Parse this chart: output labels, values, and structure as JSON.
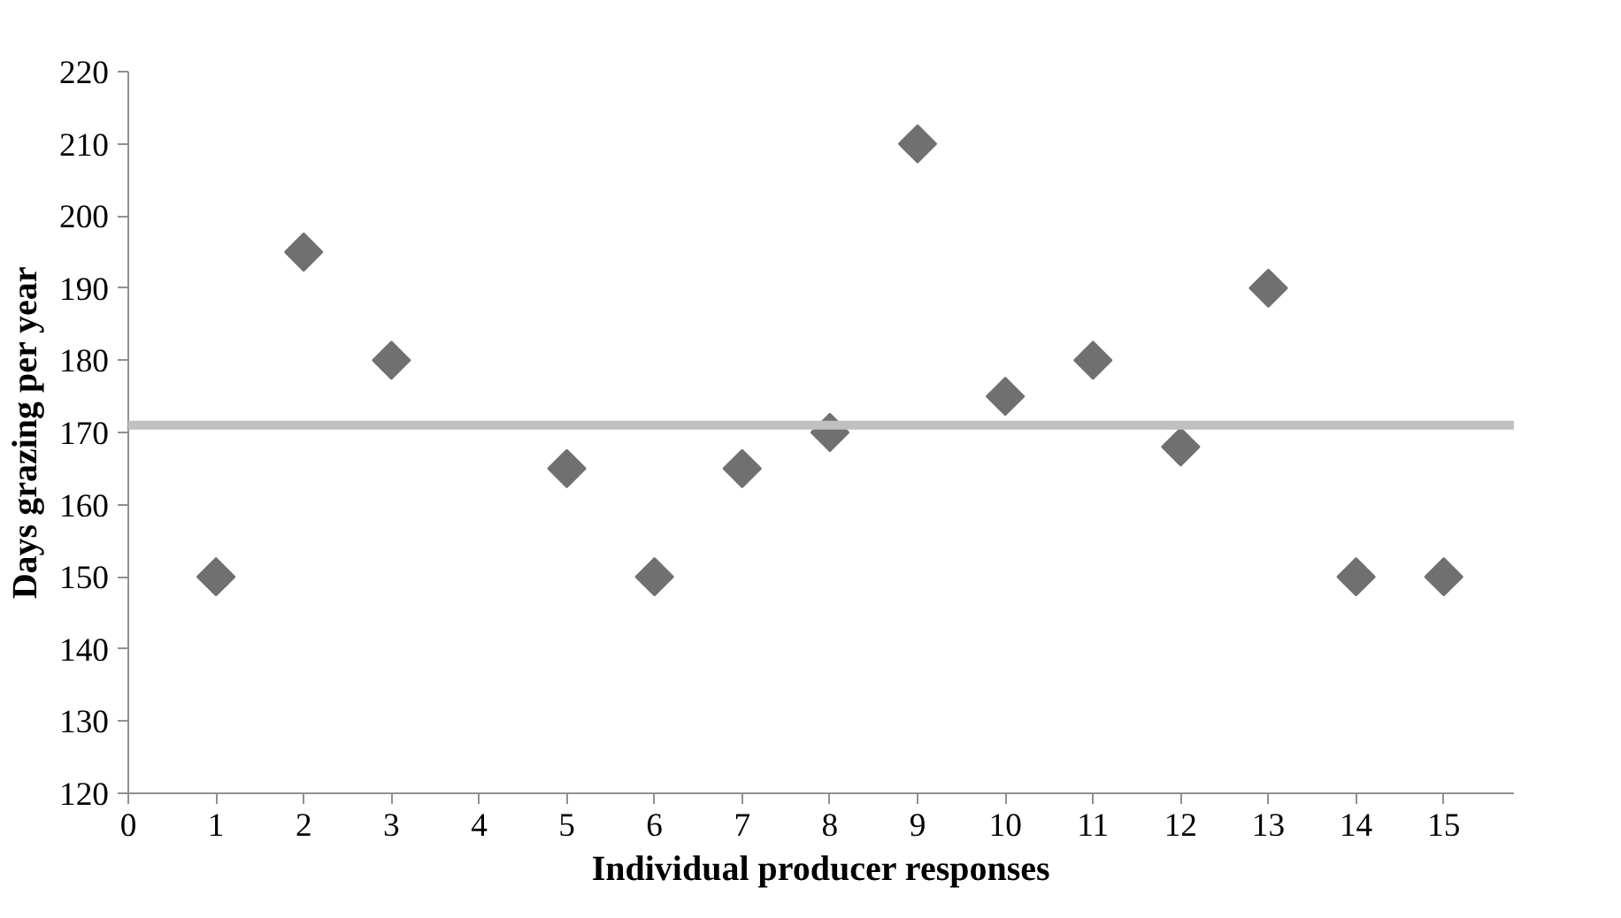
{
  "chart_data": {
    "type": "scatter",
    "xlabel": "Individual producer responses",
    "ylabel": "Days grazing per year",
    "x": [
      1,
      2,
      3,
      5,
      6,
      7,
      8,
      9,
      10,
      11,
      12,
      13,
      14,
      15
    ],
    "values": [
      150,
      195,
      180,
      165,
      150,
      165,
      170,
      210,
      175,
      180,
      168,
      190,
      150,
      150
    ],
    "color": "#707070",
    "marker": "diamond",
    "xlim": [
      0,
      15.8
    ],
    "xticks": [
      0,
      1,
      2,
      3,
      4,
      5,
      6,
      7,
      8,
      9,
      10,
      11,
      12,
      13,
      14,
      15
    ],
    "ylim": [
      120,
      220
    ],
    "yticks": [
      120,
      130,
      140,
      150,
      160,
      170,
      180,
      190,
      200,
      210,
      220
    ],
    "grid": false,
    "ref_lines": [
      {
        "axis": "y",
        "value": 171,
        "color": "#c0c0c0"
      }
    ]
  }
}
